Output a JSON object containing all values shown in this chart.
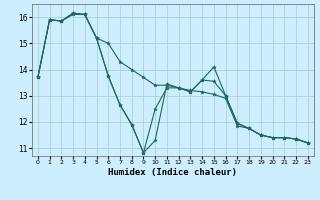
{
  "xlabel": "Humidex (Indice chaleur)",
  "bg_color": "#cceeff",
  "grid_color": "#aacccc",
  "line_color": "#1a6b5a",
  "xlim": [
    -0.5,
    23.5
  ],
  "ylim": [
    10.7,
    16.5
  ],
  "yticks": [
    11,
    12,
    13,
    14,
    15,
    16
  ],
  "xticks": [
    0,
    1,
    2,
    3,
    4,
    5,
    6,
    7,
    8,
    9,
    10,
    11,
    12,
    13,
    14,
    15,
    16,
    17,
    18,
    19,
    20,
    21,
    22,
    23
  ],
  "series1": [
    13.7,
    15.9,
    15.85,
    16.1,
    16.1,
    15.2,
    15.0,
    14.3,
    14.0,
    13.7,
    13.4,
    13.4,
    13.3,
    13.2,
    13.15,
    13.05,
    12.9,
    11.85,
    11.75,
    11.5,
    11.4,
    11.4,
    11.35,
    11.2
  ],
  "series2": [
    13.7,
    15.9,
    15.85,
    16.15,
    16.1,
    15.2,
    13.75,
    12.65,
    11.9,
    10.82,
    11.3,
    13.45,
    13.3,
    13.15,
    13.6,
    13.55,
    13.0,
    11.95,
    11.75,
    11.5,
    11.4,
    11.4,
    11.35,
    11.2
  ],
  "series3": [
    13.7,
    15.9,
    15.85,
    16.15,
    16.1,
    15.2,
    13.75,
    12.65,
    11.9,
    10.82,
    12.5,
    13.3,
    13.3,
    13.15,
    13.6,
    14.1,
    13.0,
    11.95,
    11.75,
    11.5,
    11.4,
    11.4,
    11.35,
    11.2
  ]
}
